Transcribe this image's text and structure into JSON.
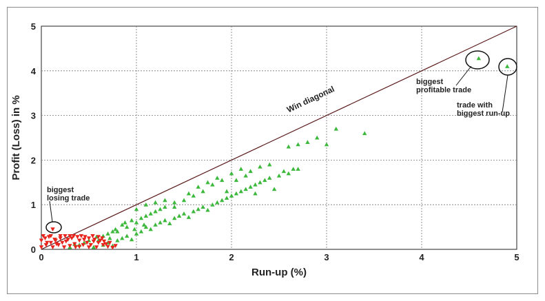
{
  "chart_data": {
    "type": "scatter",
    "title": "",
    "xlabel": "Run-up (%)",
    "ylabel": "Profit (Loss) in %",
    "xlim": [
      0,
      5
    ],
    "ylim": [
      0,
      5
    ],
    "x_ticks": [
      "0",
      "1",
      "2",
      "3",
      "4",
      "5"
    ],
    "y_ticks": [
      "0",
      "1",
      "2",
      "3",
      "4",
      "5"
    ],
    "grid": true,
    "diagonal_label": "Win diagonal",
    "series": [
      {
        "color": "#3cb83c",
        "marker": "triangle-up",
        "points": [
          [
            0.55,
            0.05
          ],
          [
            0.65,
            0.1
          ],
          [
            0.7,
            0.15
          ],
          [
            0.75,
            0.08
          ],
          [
            0.8,
            0.2
          ],
          [
            0.85,
            0.25
          ],
          [
            0.9,
            0.3
          ],
          [
            0.95,
            0.22
          ],
          [
            1.0,
            0.35
          ],
          [
            1.05,
            0.4
          ],
          [
            1.1,
            0.5
          ],
          [
            1.15,
            0.45
          ],
          [
            1.2,
            0.55
          ],
          [
            1.25,
            0.6
          ],
          [
            1.3,
            0.65
          ],
          [
            1.35,
            0.58
          ],
          [
            1.4,
            0.7
          ],
          [
            1.45,
            0.75
          ],
          [
            1.5,
            0.8
          ],
          [
            1.55,
            0.72
          ],
          [
            1.6,
            0.85
          ],
          [
            1.65,
            0.9
          ],
          [
            1.7,
            0.95
          ],
          [
            1.75,
            0.88
          ],
          [
            1.8,
            1.0
          ],
          [
            1.85,
            1.05
          ],
          [
            1.9,
            1.1
          ],
          [
            1.95,
            1.15
          ],
          [
            2.0,
            1.2
          ],
          [
            2.05,
            1.25
          ],
          [
            2.1,
            1.3
          ],
          [
            2.15,
            1.35
          ],
          [
            2.2,
            1.4
          ],
          [
            2.25,
            1.45
          ],
          [
            2.3,
            1.5
          ],
          [
            2.35,
            1.55
          ],
          [
            2.4,
            1.6
          ],
          [
            2.5,
            1.65
          ],
          [
            2.6,
            1.7
          ],
          [
            2.7,
            1.8
          ],
          [
            0.8,
            0.4
          ],
          [
            0.9,
            0.5
          ],
          [
            1.0,
            0.6
          ],
          [
            1.1,
            0.75
          ],
          [
            1.2,
            0.85
          ],
          [
            1.3,
            0.95
          ],
          [
            1.4,
            1.05
          ],
          [
            1.5,
            1.1
          ],
          [
            1.6,
            1.2
          ],
          [
            1.7,
            1.3
          ],
          [
            1.8,
            1.45
          ],
          [
            1.9,
            1.55
          ],
          [
            2.0,
            1.7
          ],
          [
            2.1,
            1.8
          ],
          [
            2.2,
            1.75
          ],
          [
            2.3,
            1.85
          ],
          [
            2.4,
            1.9
          ],
          [
            1.0,
            0.9
          ],
          [
            1.1,
            1.0
          ],
          [
            1.2,
            1.05
          ],
          [
            1.3,
            1.1
          ],
          [
            1.4,
            0.95
          ],
          [
            1.55,
            1.25
          ],
          [
            1.65,
            1.4
          ],
          [
            1.75,
            1.5
          ],
          [
            1.85,
            1.6
          ],
          [
            1.95,
            1.3
          ],
          [
            2.05,
            1.55
          ],
          [
            2.15,
            1.65
          ],
          [
            2.25,
            1.25
          ],
          [
            2.45,
            1.35
          ],
          [
            0.7,
            0.35
          ],
          [
            0.75,
            0.4
          ],
          [
            0.85,
            0.55
          ],
          [
            0.95,
            0.65
          ],
          [
            1.05,
            0.7
          ],
          [
            1.15,
            0.8
          ],
          [
            1.25,
            0.9
          ],
          [
            0.6,
            0.2
          ],
          [
            0.65,
            0.3
          ],
          [
            0.72,
            0.25
          ],
          [
            0.78,
            0.45
          ],
          [
            0.88,
            0.6
          ],
          [
            0.98,
            0.45
          ],
          [
            1.08,
            0.55
          ],
          [
            0.4,
            0.1
          ],
          [
            0.45,
            0.15
          ],
          [
            0.5,
            0.2
          ],
          [
            0.3,
            0.05
          ],
          [
            0.35,
            0.12
          ],
          [
            0.58,
            0.28
          ],
          [
            2.6,
            2.3
          ],
          [
            2.7,
            2.35
          ],
          [
            2.8,
            2.4
          ],
          [
            2.9,
            2.5
          ],
          [
            3.0,
            2.35
          ],
          [
            3.1,
            2.7
          ],
          [
            3.4,
            2.6
          ],
          [
            2.65,
            1.8
          ],
          [
            2.55,
            1.75
          ],
          [
            4.6,
            4.28
          ],
          [
            4.9,
            4.1
          ]
        ]
      },
      {
        "color": "#e8241c",
        "marker": "triangle-down",
        "points": [
          [
            0.0,
            0.05
          ],
          [
            0.05,
            0.1
          ],
          [
            0.1,
            0.15
          ],
          [
            0.15,
            0.2
          ],
          [
            0.2,
            0.25
          ],
          [
            0.25,
            0.3
          ],
          [
            0.3,
            0.08
          ],
          [
            0.35,
            0.12
          ],
          [
            0.4,
            0.2
          ],
          [
            0.45,
            0.22
          ],
          [
            0.5,
            0.25
          ],
          [
            0.55,
            0.18
          ],
          [
            0.6,
            0.15
          ],
          [
            0.65,
            0.1
          ],
          [
            0.7,
            0.06
          ],
          [
            0.75,
            0.04
          ],
          [
            0.02,
            0.3
          ],
          [
            0.08,
            0.28
          ],
          [
            0.12,
            0.05
          ],
          [
            0.18,
            0.1
          ],
          [
            0.22,
            0.15
          ],
          [
            0.28,
            0.22
          ],
          [
            0.32,
            0.25
          ],
          [
            0.38,
            0.28
          ],
          [
            0.42,
            0.3
          ],
          [
            0.48,
            0.15
          ],
          [
            0.52,
            0.1
          ],
          [
            0.58,
            0.05
          ],
          [
            0.62,
            0.2
          ],
          [
            0.68,
            0.12
          ],
          [
            0.0,
            0.2
          ],
          [
            0.04,
            0.25
          ],
          [
            0.1,
            0.3
          ],
          [
            0.14,
            0.22
          ],
          [
            0.16,
            0.12
          ],
          [
            0.24,
            0.05
          ],
          [
            0.26,
            0.18
          ],
          [
            0.34,
            0.3
          ],
          [
            0.36,
            0.05
          ],
          [
            0.44,
            0.1
          ],
          [
            0.46,
            0.28
          ],
          [
            0.54,
            0.3
          ],
          [
            0.56,
            0.22
          ],
          [
            0.64,
            0.25
          ],
          [
            0.72,
            0.15
          ],
          [
            0.78,
            0.08
          ],
          [
            0.06,
            0.15
          ],
          [
            0.2,
            0.3
          ],
          [
            0.3,
            0.3
          ],
          [
            0.4,
            0.06
          ],
          [
            0.5,
            0.05
          ],
          [
            0.6,
            0.28
          ],
          [
            0.66,
            0.18
          ],
          [
            0.12,
            0.45
          ]
        ]
      }
    ],
    "annotations": [
      {
        "lines": [
          "biggest",
          "losing trade"
        ]
      },
      {
        "lines": [
          "biggest",
          "profitable trade"
        ]
      },
      {
        "lines": [
          "trade with",
          "biggest run-up"
        ]
      }
    ]
  }
}
